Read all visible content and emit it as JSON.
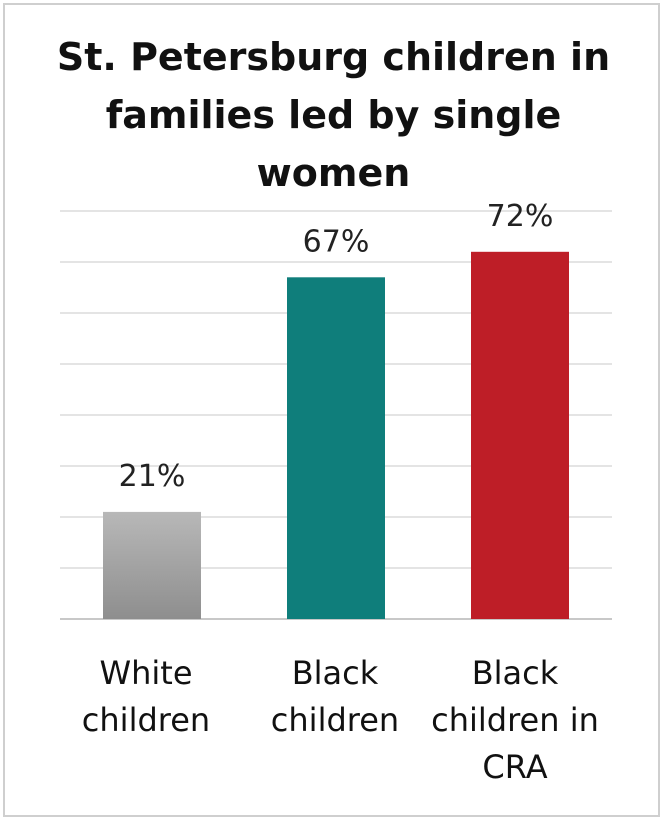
{
  "chart_data": {
    "type": "bar",
    "title": "St. Petersburg children in families led by single women",
    "categories": [
      "White children",
      "Black children",
      "Black children in CRA"
    ],
    "values": [
      21,
      67,
      72
    ],
    "value_labels": [
      "21%",
      "67%",
      "72%"
    ],
    "colors": [
      "#a6a6a6",
      "#0f7e7b",
      "#be1e27"
    ],
    "ylim": [
      0,
      80
    ],
    "grid": true,
    "xlabel": "",
    "ylabel": ""
  }
}
